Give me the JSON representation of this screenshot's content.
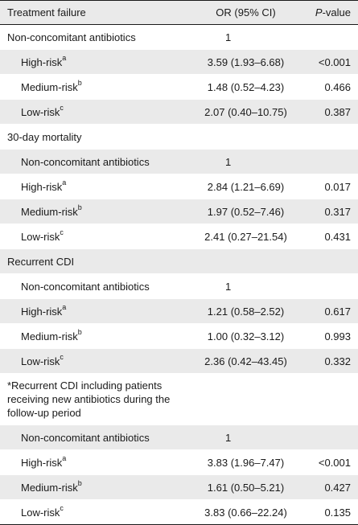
{
  "header": {
    "col1": "Treatment failure",
    "col2": "OR (95% CI)",
    "col3_italic": "P",
    "col3_rest": "-value"
  },
  "rows": [
    {
      "label": "Non-concomitant antibiotics",
      "sup": "",
      "or": "1",
      "p": "",
      "indent": false,
      "kind": "ref"
    },
    {
      "label": "High-risk",
      "sup": "a",
      "or": "3.59 (1.93–6.68)",
      "p": "<0.001",
      "indent": true,
      "kind": "data"
    },
    {
      "label": "Medium-risk",
      "sup": "b",
      "or": "1.48 (0.52–4.23)",
      "p": "0.466",
      "indent": true,
      "kind": "data"
    },
    {
      "label": "Low-risk",
      "sup": "c",
      "or": "2.07 (0.40–10.75)",
      "p": "0.387",
      "indent": true,
      "kind": "data"
    },
    {
      "label": "30-day mortality",
      "sup": "",
      "or": "",
      "p": "",
      "indent": false,
      "kind": "section"
    },
    {
      "label": "Non-concomitant antibiotics",
      "sup": "",
      "or": "1",
      "p": "",
      "indent": true,
      "kind": "ref"
    },
    {
      "label": "High-risk",
      "sup": "a",
      "or": "2.84 (1.21–6.69)",
      "p": "0.017",
      "indent": true,
      "kind": "data"
    },
    {
      "label": "Medium-risk",
      "sup": "b",
      "or": "1.97 (0.52–7.46)",
      "p": "0.317",
      "indent": true,
      "kind": "data"
    },
    {
      "label": "Low-risk",
      "sup": "c",
      "or": "2.41 (0.27–21.54)",
      "p": "0.431",
      "indent": true,
      "kind": "data"
    },
    {
      "label": "Recurrent CDI",
      "sup": "",
      "or": "",
      "p": "",
      "indent": false,
      "kind": "section"
    },
    {
      "label": "Non-concomitant antibiotics",
      "sup": "",
      "or": "1",
      "p": "",
      "indent": true,
      "kind": "ref"
    },
    {
      "label": "High-risk",
      "sup": "a",
      "or": "1.21 (0.58–2.52)",
      "p": "0.617",
      "indent": true,
      "kind": "data"
    },
    {
      "label": "Medium-risk",
      "sup": "b",
      "or": "1.00 (0.32–3.12)",
      "p": "0.993",
      "indent": true,
      "kind": "data"
    },
    {
      "label": "Low-risk",
      "sup": "c",
      "or": "2.36 (0.42–43.45)",
      "p": "0.332",
      "indent": true,
      "kind": "data"
    },
    {
      "label": "*Recurrent CDI including patients receiving new antibiotics during the follow-up period",
      "sup": "",
      "or": "",
      "p": "",
      "indent": false,
      "kind": "section-tall"
    },
    {
      "label": "Non-concomitant antibiotics",
      "sup": "",
      "or": "1",
      "p": "",
      "indent": true,
      "kind": "ref"
    },
    {
      "label": "High-risk",
      "sup": "a",
      "or": "3.83 (1.96–7.47)",
      "p": "<0.001",
      "indent": true,
      "kind": "data"
    },
    {
      "label": "Medium-risk",
      "sup": "b",
      "or": "1.61 (0.50–5.21)",
      "p": "0.427",
      "indent": true,
      "kind": "data"
    },
    {
      "label": "Low-risk",
      "sup": "c",
      "or": "3.83 (0.66–22.24)",
      "p": "0.135",
      "indent": true,
      "kind": "data"
    }
  ],
  "colors": {
    "shade": "#eaeaea",
    "white": "#ffffff",
    "rule": "#1a1a1a"
  }
}
